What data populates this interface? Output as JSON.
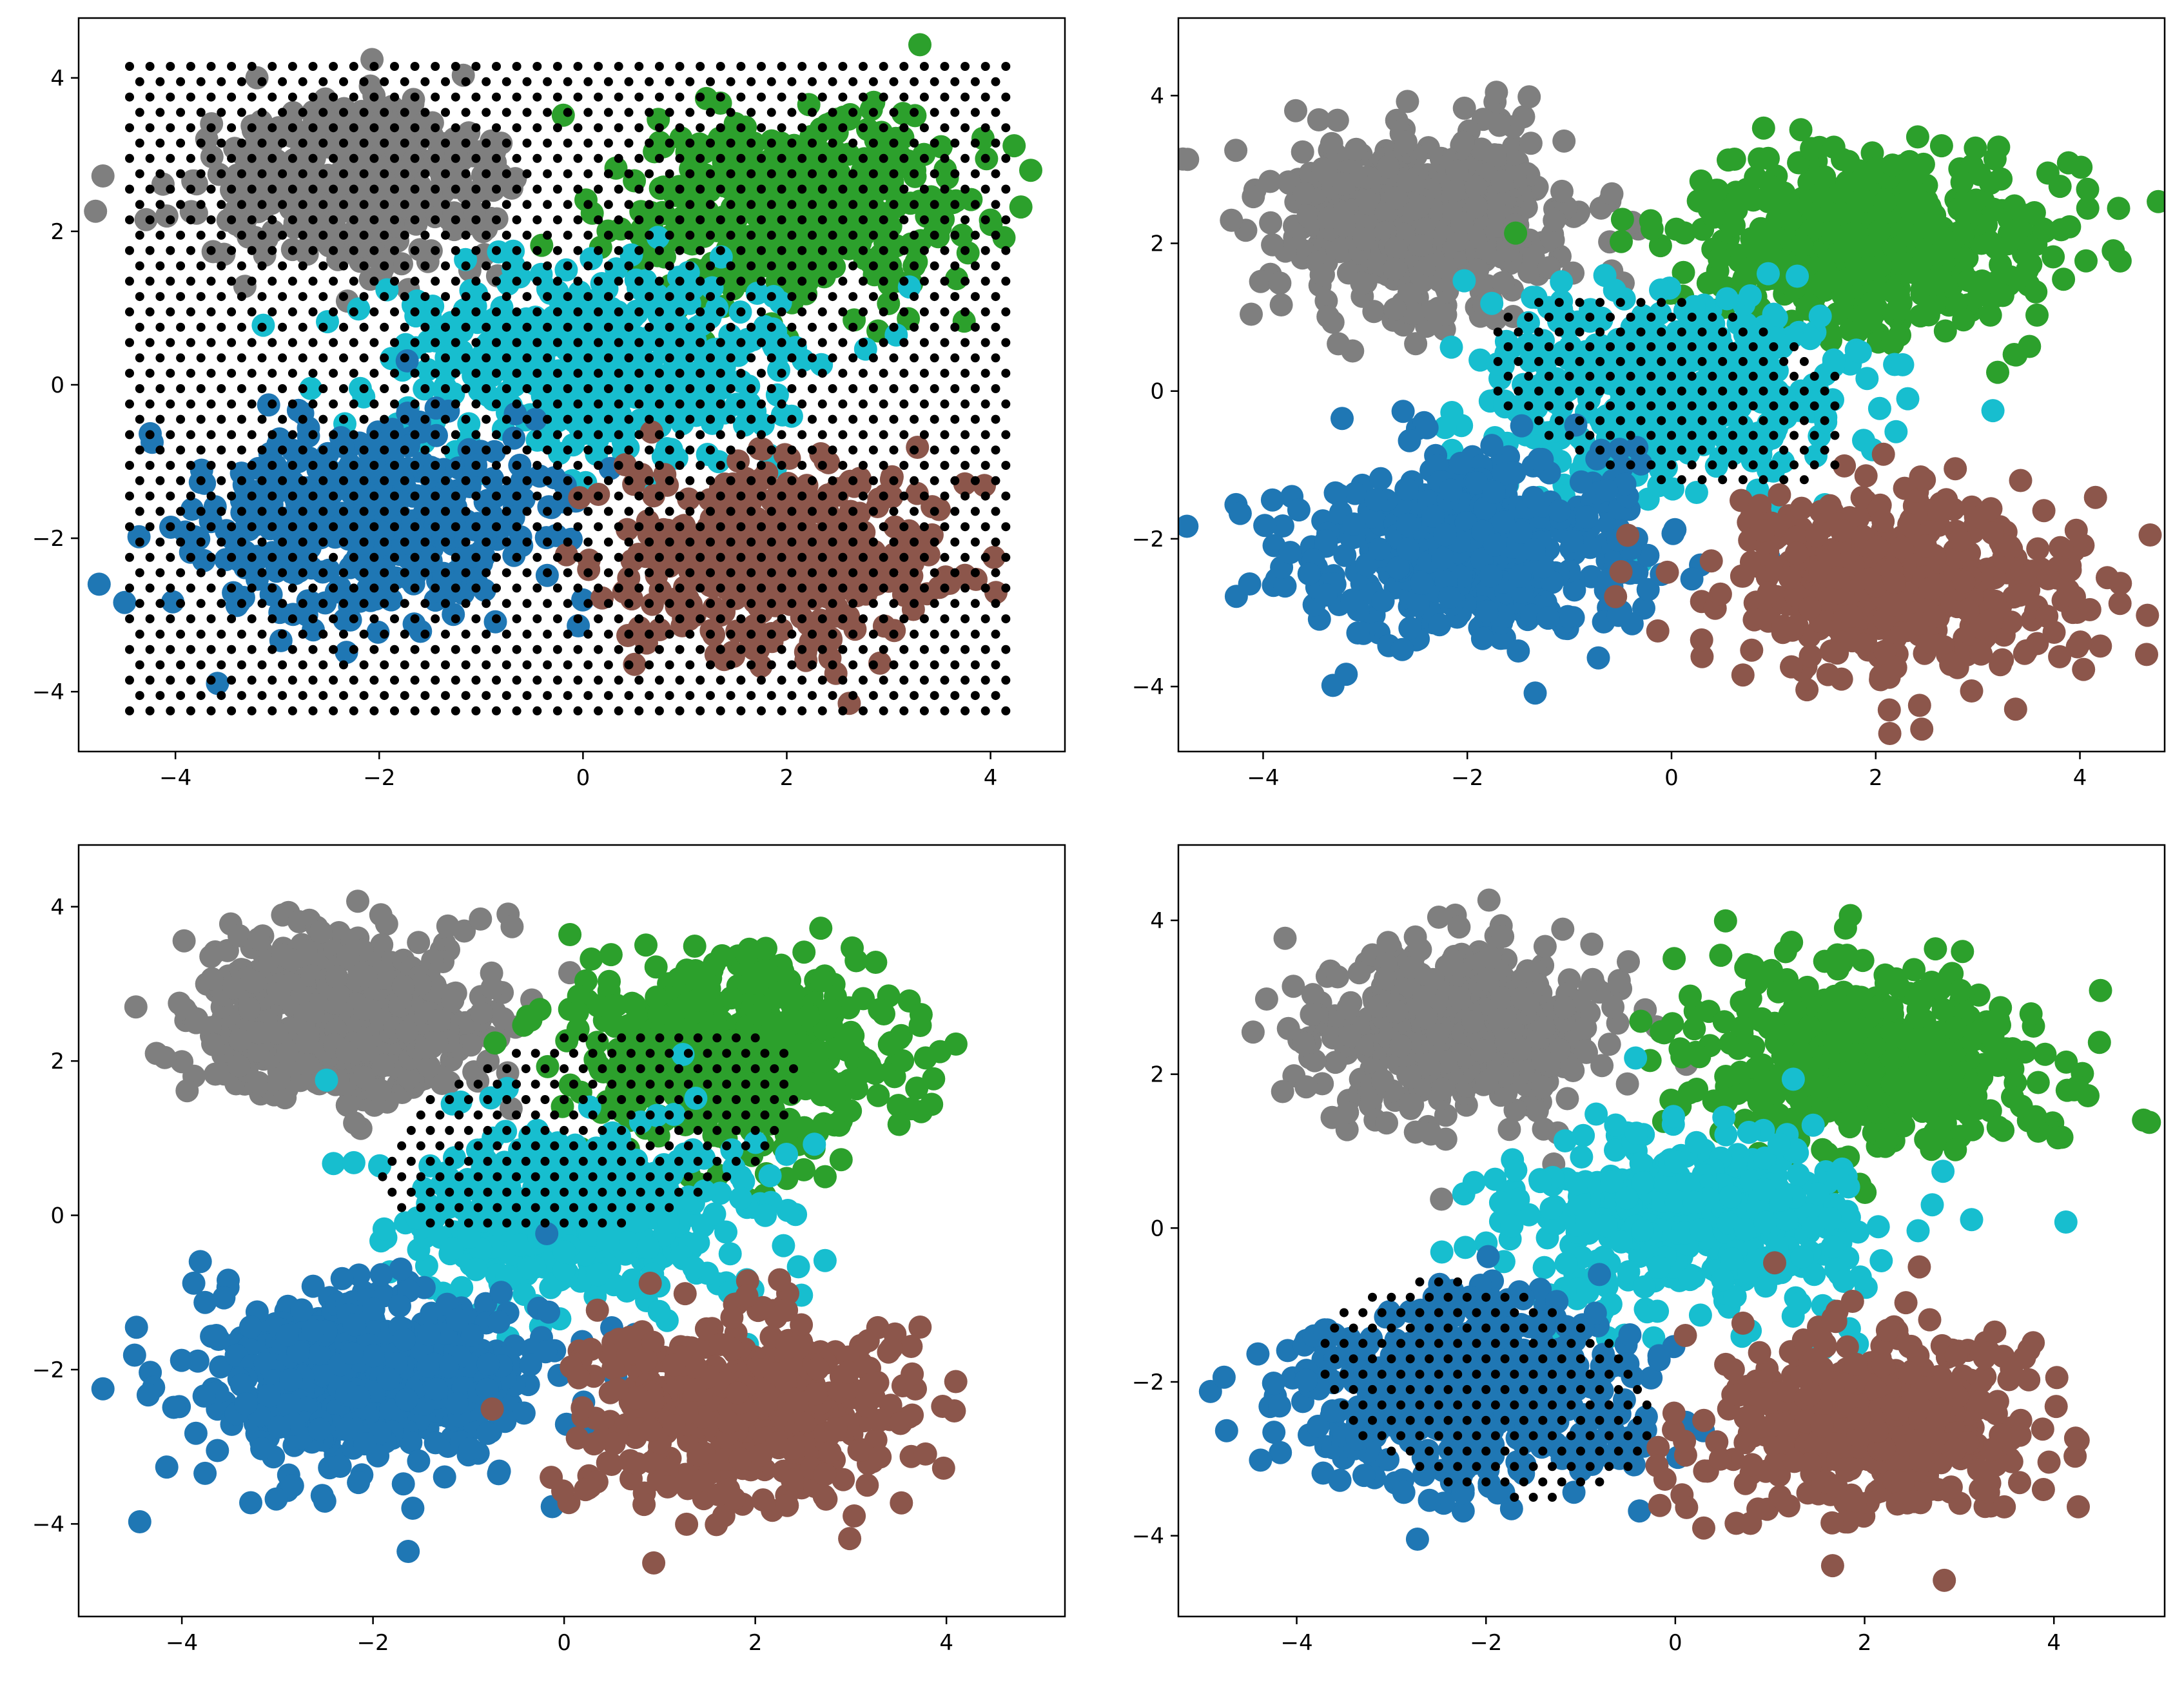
{
  "figure": {
    "grid": "off",
    "legend": "none",
    "panel_count": 4
  },
  "chart_data": [
    {
      "panel": "top-left",
      "type": "scatter",
      "title": "",
      "xlabel": "",
      "ylabel": "",
      "xlim": [
        -4.95,
        4.73
      ],
      "ylim": [
        -4.78,
        4.78
      ],
      "xticks": [
        -4,
        -2,
        0,
        2,
        4
      ],
      "yticks": [
        -4,
        -2,
        0,
        2,
        4
      ],
      "xtick_labels": [
        "−4",
        "−2",
        "0",
        "2",
        "4"
      ],
      "ytick_labels": [
        "−4",
        "−2",
        "0",
        "2",
        "4"
      ],
      "grid": "off",
      "clusters": [
        {
          "color": "#7f7f7f",
          "center": [
            -2.2,
            2.6
          ],
          "spread": [
            0.75,
            0.55
          ],
          "n": 420
        },
        {
          "color": "#2ca02c",
          "center": [
            2.1,
            2.3
          ],
          "spread": [
            0.85,
            0.6
          ],
          "n": 440
        },
        {
          "color": "#17becf",
          "center": [
            0.1,
            0.3
          ],
          "spread": [
            0.95,
            0.6
          ],
          "n": 460
        },
        {
          "color": "#1f77b4",
          "center": [
            -2.1,
            -1.8
          ],
          "spread": [
            0.85,
            0.6
          ],
          "n": 460
        },
        {
          "color": "#8c564b",
          "center": [
            1.9,
            -2.3
          ],
          "spread": [
            0.8,
            0.6
          ],
          "n": 400
        }
      ],
      "grid_points": {
        "color": "#000000",
        "x_range": [
          -4.45,
          4.2
        ],
        "y_range": [
          -4.25,
          4.3
        ],
        "step": 0.2,
        "region": "full"
      }
    },
    {
      "panel": "top-right",
      "type": "scatter",
      "title": "",
      "xlabel": "",
      "ylabel": "",
      "xlim": [
        -4.83,
        4.83
      ],
      "ylim": [
        -4.88,
        5.05
      ],
      "xticks": [
        -4,
        -2,
        0,
        2,
        4
      ],
      "yticks": [
        -4,
        -2,
        0,
        2,
        4
      ],
      "xtick_labels": [
        "−4",
        "−2",
        "0",
        "2",
        "4"
      ],
      "ytick_labels": [
        "−4",
        "−2",
        "0",
        "2",
        "4"
      ],
      "grid": "off",
      "clusters": [
        {
          "color": "#7f7f7f",
          "center": [
            -2.4,
            2.3
          ],
          "spread": [
            0.75,
            0.6
          ],
          "n": 520
        },
        {
          "color": "#2ca02c",
          "center": [
            2.0,
            2.0
          ],
          "spread": [
            0.9,
            0.6
          ],
          "n": 560
        },
        {
          "color": "#17becf",
          "center": [
            0.0,
            0.0
          ],
          "spread": [
            0.9,
            0.65
          ],
          "n": 460
        },
        {
          "color": "#1f77b4",
          "center": [
            -2.0,
            -2.1
          ],
          "spread": [
            0.9,
            0.6
          ],
          "n": 560
        },
        {
          "color": "#8c564b",
          "center": [
            2.2,
            -2.6
          ],
          "spread": [
            0.85,
            0.6
          ],
          "n": 480
        }
      ],
      "grid_points": {
        "color": "#000000",
        "x_range": [
          -1.7,
          1.6
        ],
        "y_range": [
          -2.0,
          1.9
        ],
        "step": 0.2,
        "region": "tilted-ellipse",
        "center": [
          0.0,
          0.0
        ],
        "radii": [
          2.0,
          1.2
        ],
        "angle_deg": -25
      }
    },
    {
      "panel": "bottom-left",
      "type": "scatter",
      "title": "",
      "xlabel": "",
      "ylabel": "",
      "xlim": [
        -5.08,
        5.24
      ],
      "ylim": [
        -5.2,
        4.8
      ],
      "xticks": [
        -4,
        -2,
        0,
        2,
        4
      ],
      "yticks": [
        -4,
        -2,
        0,
        2,
        4
      ],
      "xtick_labels": [
        "−4",
        "−2",
        "0",
        "2",
        "4"
      ],
      "ytick_labels": [
        "−4",
        "−2",
        "0",
        "2",
        "4"
      ],
      "grid": "off",
      "clusters": [
        {
          "color": "#7f7f7f",
          "center": [
            -2.3,
            2.6
          ],
          "spread": [
            0.75,
            0.55
          ],
          "n": 520
        },
        {
          "color": "#2ca02c",
          "center": [
            1.9,
            2.1
          ],
          "spread": [
            0.9,
            0.6
          ],
          "n": 560
        },
        {
          "color": "#17becf",
          "center": [
            0.1,
            0.0
          ],
          "spread": [
            0.9,
            0.6
          ],
          "n": 460
        },
        {
          "color": "#1f77b4",
          "center": [
            -2.1,
            -2.1
          ],
          "spread": [
            0.9,
            0.6
          ],
          "n": 560
        },
        {
          "color": "#8c564b",
          "center": [
            1.9,
            -2.5
          ],
          "spread": [
            0.85,
            0.6
          ],
          "n": 480
        }
      ],
      "grid_points": {
        "color": "#000000",
        "x_range": [
          -2.0,
          2.4
        ],
        "y_range": [
          -0.5,
          2.6
        ],
        "step": 0.2,
        "region": "tilted-ellipse",
        "center": [
          0.3,
          1.1
        ],
        "radii": [
          2.3,
          1.25
        ],
        "angle_deg": 18
      }
    },
    {
      "panel": "bottom-right",
      "type": "scatter",
      "title": "",
      "xlabel": "",
      "ylabel": "",
      "xlim": [
        -5.25,
        5.17
      ],
      "ylim": [
        -5.05,
        4.98
      ],
      "xticks": [
        -4,
        -2,
        0,
        2,
        4
      ],
      "yticks": [
        -4,
        -2,
        0,
        2,
        4
      ],
      "xtick_labels": [
        "−4",
        "−2",
        "0",
        "2",
        "4"
      ],
      "ytick_labels": [
        "−4",
        "−2",
        "0",
        "2",
        "4"
      ],
      "grid": "off",
      "clusters": [
        {
          "color": "#7f7f7f",
          "center": [
            -2.3,
            2.6
          ],
          "spread": [
            0.75,
            0.55
          ],
          "n": 520
        },
        {
          "color": "#2ca02c",
          "center": [
            2.0,
            2.2
          ],
          "spread": [
            0.9,
            0.6
          ],
          "n": 560
        },
        {
          "color": "#17becf",
          "center": [
            0.2,
            0.1
          ],
          "spread": [
            0.95,
            0.6
          ],
          "n": 480
        },
        {
          "color": "#1f77b4",
          "center": [
            -2.1,
            -2.1
          ],
          "spread": [
            0.9,
            0.6
          ],
          "n": 560
        },
        {
          "color": "#8c564b",
          "center": [
            2.1,
            -2.5
          ],
          "spread": [
            0.85,
            0.6
          ],
          "n": 480
        }
      ],
      "grid_points": {
        "color": "#000000",
        "x_range": [
          -3.7,
          -0.3
        ],
        "y_range": [
          -3.9,
          -0.5
        ],
        "step": 0.2,
        "region": "tilted-ellipse",
        "center": [
          -2.0,
          -2.1
        ],
        "radii": [
          1.9,
          1.3
        ],
        "angle_deg": -25
      }
    }
  ]
}
